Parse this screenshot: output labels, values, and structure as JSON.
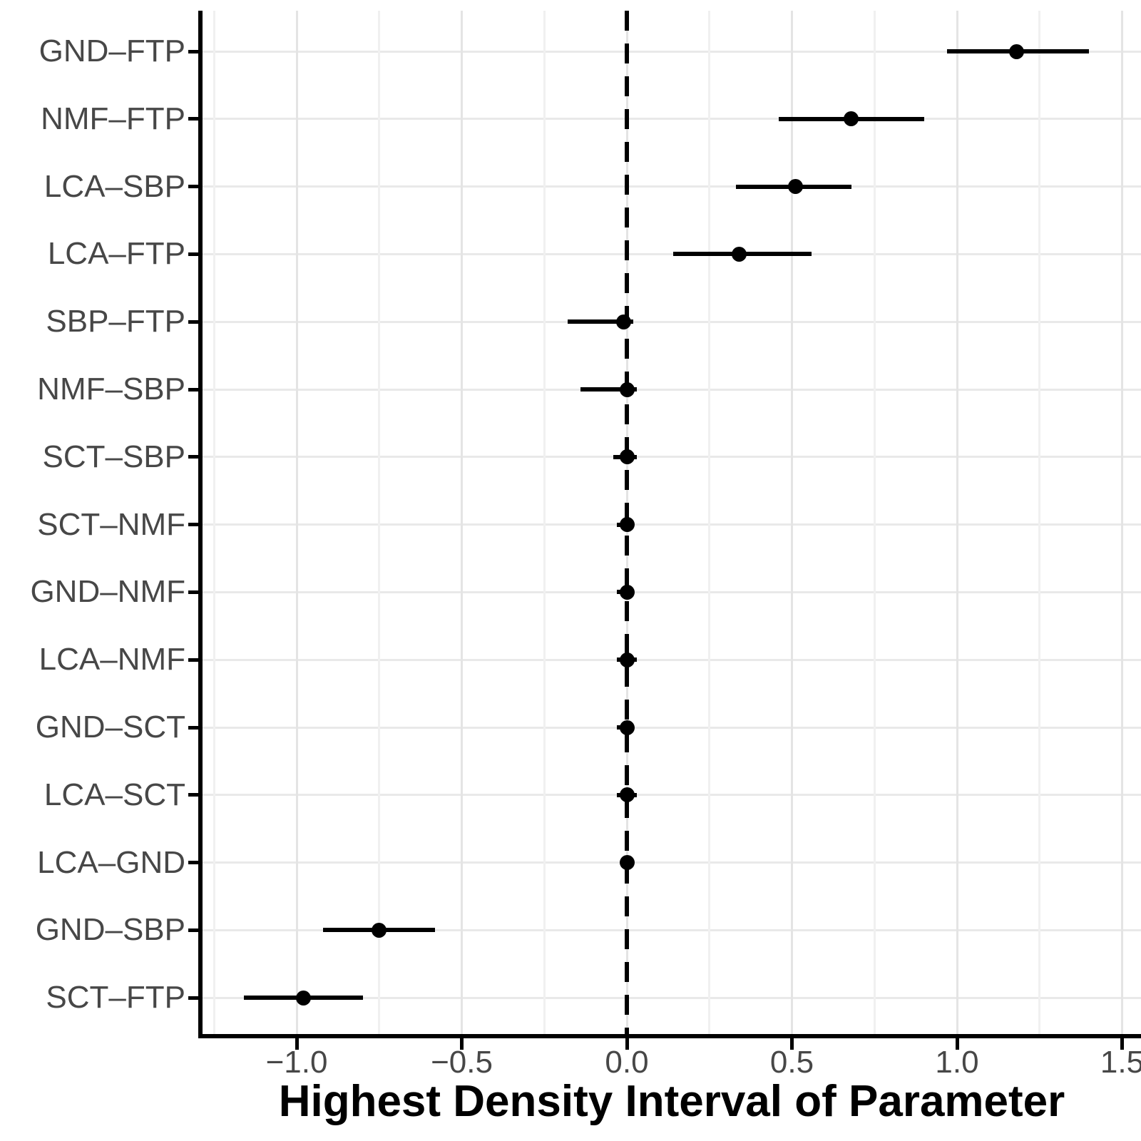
{
  "chart_data": {
    "type": "scatter",
    "subtype": "forest-interval-plot",
    "title": "",
    "xlabel": "Highest Density Interval of Parameter",
    "ylabel": "",
    "xlim": [
      -1.285,
      1.557
    ],
    "x_major_ticks": [
      -1.0,
      -0.5,
      0.0,
      0.5,
      1.0,
      1.5
    ],
    "x_tick_labels": [
      "−1.0",
      "−0.5",
      "0.0",
      "0.5",
      "1.0",
      "1.5"
    ],
    "x_minor_tick_step": 0.25,
    "grid": true,
    "legend": "none",
    "reference_line_x": 0.0,
    "reference_line_style": "dashed",
    "categories": [
      "GND–FTP",
      "NMF–FTP",
      "LCA–SBP",
      "LCA–FTP",
      "SBP–FTP",
      "NMF–SBP",
      "SCT–SBP",
      "SCT–NMF",
      "GND–NMF",
      "LCA–NMF",
      "GND–SCT",
      "LCA–SCT",
      "LCA–GND",
      "GND–SBP",
      "SCT–FTP"
    ],
    "points": [
      {
        "label": "GND–FTP",
        "estimate": 1.18,
        "lower": 0.97,
        "upper": 1.4
      },
      {
        "label": "NMF–FTP",
        "estimate": 0.68,
        "lower": 0.46,
        "upper": 0.9
      },
      {
        "label": "LCA–SBP",
        "estimate": 0.51,
        "lower": 0.33,
        "upper": 0.68
      },
      {
        "label": "LCA–FTP",
        "estimate": 0.34,
        "lower": 0.14,
        "upper": 0.56
      },
      {
        "label": "SBP–FTP",
        "estimate": -0.01,
        "lower": -0.18,
        "upper": 0.02
      },
      {
        "label": "NMF–SBP",
        "estimate": 0.0,
        "lower": -0.14,
        "upper": 0.03
      },
      {
        "label": "SCT–SBP",
        "estimate": 0.0,
        "lower": -0.04,
        "upper": 0.03
      },
      {
        "label": "SCT–NMF",
        "estimate": 0.0,
        "lower": -0.03,
        "upper": 0.02
      },
      {
        "label": "GND–NMF",
        "estimate": 0.0,
        "lower": -0.03,
        "upper": 0.02
      },
      {
        "label": "LCA–NMF",
        "estimate": 0.0,
        "lower": -0.03,
        "upper": 0.03
      },
      {
        "label": "GND–SCT",
        "estimate": 0.0,
        "lower": -0.03,
        "upper": 0.02
      },
      {
        "label": "LCA–SCT",
        "estimate": 0.0,
        "lower": -0.03,
        "upper": 0.03
      },
      {
        "label": "LCA–GND",
        "estimate": 0.0,
        "lower": -0.02,
        "upper": 0.02
      },
      {
        "label": "GND–SBP",
        "estimate": -0.75,
        "lower": -0.92,
        "upper": -0.58
      },
      {
        "label": "SCT–FTP",
        "estimate": -0.98,
        "lower": -1.16,
        "upper": -0.8
      }
    ],
    "colors": {
      "marker": "#000000",
      "interval_line": "#000000",
      "axis_line": "#000000",
      "tick_label_text": "#474747",
      "axis_title_text": "#000000",
      "gridline_major": "#e4e4e4",
      "gridline_minor": "#f0f0f0",
      "background": "#ffffff"
    }
  }
}
